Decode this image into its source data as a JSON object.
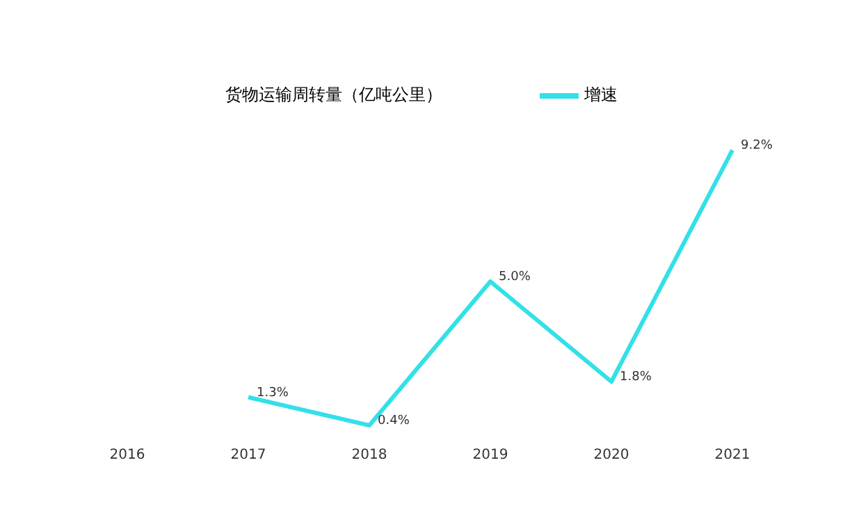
{
  "chart_data": {
    "type": "line",
    "categories": [
      "2016",
      "2017",
      "2018",
      "2019",
      "2020",
      "2021"
    ],
    "series": [
      {
        "name": "货物运输周转量（亿吨公里）",
        "type": "bar",
        "values": [
          null,
          null,
          null,
          null,
          null,
          null
        ]
      },
      {
        "name": "增速",
        "color": "#33e0e8",
        "values": [
          null,
          1.3,
          0.4,
          5.0,
          1.8,
          9.2
        ],
        "value_labels": [
          null,
          "1.3%",
          "0.4%",
          "5.0%",
          "1.8%",
          "9.2%"
        ]
      }
    ],
    "legend": "top",
    "grid": false,
    "marker": "none",
    "line_style": "solid"
  }
}
